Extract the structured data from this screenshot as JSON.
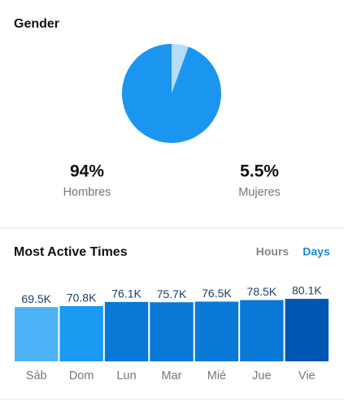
{
  "chart_data": [
    {
      "type": "pie",
      "title": "Gender",
      "categories": [
        "Hombres",
        "Mujeres"
      ],
      "values": [
        94,
        5.5
      ],
      "value_labels": [
        "94%",
        "5.5%"
      ],
      "colors": [
        "#1a96f0",
        "#b5dcfa"
      ]
    },
    {
      "type": "bar",
      "title": "Most Active Times",
      "tabs": [
        "Hours",
        "Days"
      ],
      "active_tab": 1,
      "categories": [
        "Sáb",
        "Dom",
        "Lun",
        "Mar",
        "Mié",
        "Jue",
        "Vie"
      ],
      "values": [
        69.5,
        70.8,
        76.1,
        75.7,
        76.5,
        78.5,
        80.1
      ],
      "value_labels": [
        "69.5K",
        "70.8K",
        "76.1K",
        "75.7K",
        "76.5K",
        "78.5K",
        "80.1K"
      ],
      "colors": [
        "#4db3f7",
        "#1a9af2",
        "#0a78d6",
        "#0a78d6",
        "#0a78d6",
        "#0a78d6",
        "#0057b3"
      ]
    }
  ]
}
